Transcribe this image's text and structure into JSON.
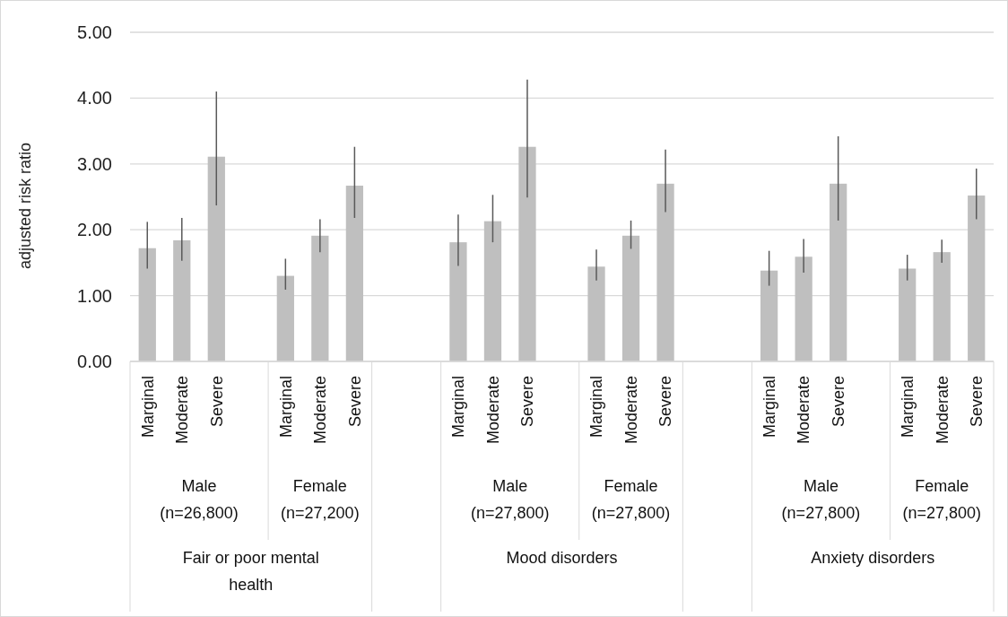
{
  "chart_data": {
    "type": "bar",
    "ylabel": "adjusted risk ratio",
    "categories": [
      "Marginal",
      "Moderate",
      "Severe",
      null,
      "Marginal",
      "Moderate",
      "Severe",
      null,
      null,
      "Marginal",
      "Moderate",
      "Severe",
      null,
      "Marginal",
      "Moderate",
      "Severe",
      null,
      null,
      "Marginal",
      "Moderate",
      "Severe",
      null,
      "Marginal",
      "Moderate",
      "Severe"
    ],
    "series": [
      {
        "color": "#bfbfbf",
        "values": [
          1.72,
          1.84,
          3.11,
          null,
          1.3,
          1.91,
          2.67,
          null,
          null,
          1.81,
          2.13,
          3.26,
          null,
          1.44,
          1.91,
          2.7,
          null,
          null,
          1.38,
          1.59,
          2.7,
          null,
          1.41,
          1.66,
          2.52
        ],
        "errors": [
          [
            1.41,
            2.12
          ],
          [
            1.53,
            2.18
          ],
          [
            2.37,
            4.1
          ],
          null,
          [
            1.09,
            1.56
          ],
          [
            1.66,
            2.16
          ],
          [
            2.18,
            3.26
          ],
          null,
          null,
          [
            1.45,
            2.23
          ],
          [
            1.81,
            2.53
          ],
          [
            2.49,
            4.28
          ],
          null,
          [
            1.23,
            1.7
          ],
          [
            1.71,
            2.14
          ],
          [
            2.27,
            3.22
          ],
          null,
          null,
          [
            1.15,
            1.68
          ],
          [
            1.35,
            1.86
          ],
          [
            2.14,
            3.42
          ],
          null,
          [
            1.23,
            1.62
          ],
          [
            1.5,
            1.85
          ],
          [
            2.16,
            2.93
          ]
        ]
      }
    ],
    "ylim": [
      0,
      5
    ],
    "yticks": [
      {
        "value": 0,
        "label": "0.00"
      },
      {
        "value": 1,
        "label": "1.00"
      },
      {
        "value": 2,
        "label": "2.00"
      },
      {
        "value": 3,
        "label": "3.00"
      },
      {
        "value": 4,
        "label": "4.00"
      },
      {
        "value": 5,
        "label": "5.00"
      }
    ],
    "grid": "y",
    "annotations": [
      "Male\n(n=26,800)",
      "Female\n(n=27,200)",
      "Male\n(n=27,800)",
      "Female\n(n=27,800)",
      "Male\n(n=27,800)",
      "Female\n(n=27,800)",
      "Fair or poor mental health",
      "Mood disorders",
      "Anxiety disorders"
    ]
  }
}
